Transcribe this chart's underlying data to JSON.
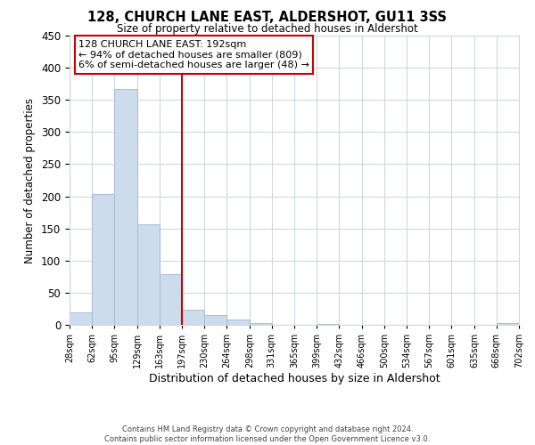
{
  "title": "128, CHURCH LANE EAST, ALDERSHOT, GU11 3SS",
  "subtitle": "Size of property relative to detached houses in Aldershot",
  "xlabel": "Distribution of detached houses by size in Aldershot",
  "ylabel": "Number of detached properties",
  "bar_edges": [
    28,
    62,
    95,
    129,
    163,
    197,
    230,
    264,
    298,
    331,
    365,
    399,
    432,
    466,
    500,
    534,
    567,
    601,
    635,
    668,
    702
  ],
  "bar_heights": [
    20,
    203,
    367,
    156,
    79,
    23,
    15,
    8,
    3,
    0,
    0,
    1,
    0,
    0,
    0,
    0,
    0,
    0,
    0,
    3
  ],
  "bar_color": "#ccdcec",
  "bar_edge_color": "#a0b8cc",
  "vline_x": 197,
  "vline_color": "#cc0000",
  "ylim": [
    0,
    450
  ],
  "annotation_title": "128 CHURCH LANE EAST: 192sqm",
  "annotation_line1": "← 94% of detached houses are smaller (809)",
  "annotation_line2": "6% of semi-detached houses are larger (48) →",
  "footer_line1": "Contains HM Land Registry data © Crown copyright and database right 2024.",
  "footer_line2": "Contains public sector information licensed under the Open Government Licence v3.0.",
  "tick_labels": [
    "28sqm",
    "62sqm",
    "95sqm",
    "129sqm",
    "163sqm",
    "197sqm",
    "230sqm",
    "264sqm",
    "298sqm",
    "331sqm",
    "365sqm",
    "399sqm",
    "432sqm",
    "466sqm",
    "500sqm",
    "534sqm",
    "567sqm",
    "601sqm",
    "635sqm",
    "668sqm",
    "702sqm"
  ],
  "bg_color": "#ffffff",
  "grid_color": "#d0d8e0",
  "yticks": [
    0,
    50,
    100,
    150,
    200,
    250,
    300,
    350,
    400,
    450
  ]
}
